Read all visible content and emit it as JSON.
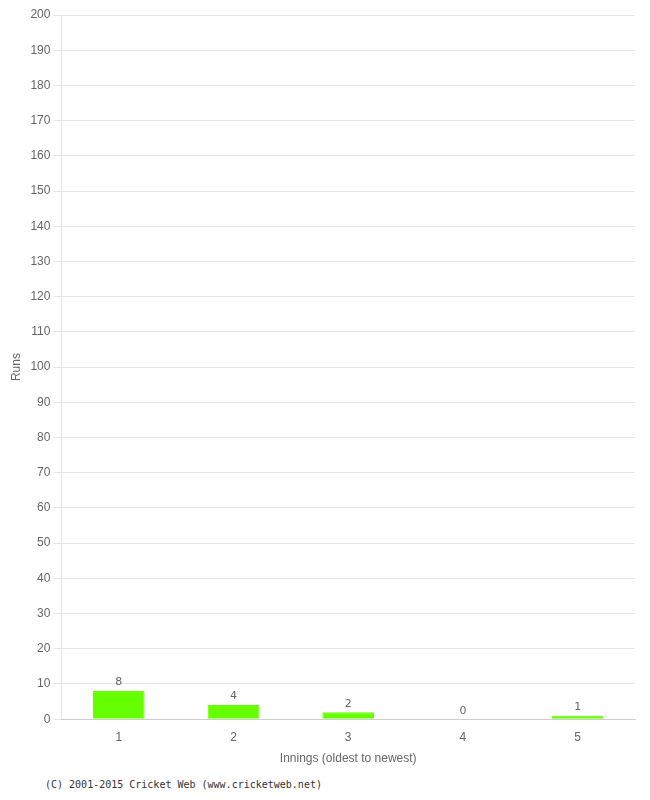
{
  "chart_data": {
    "type": "bar",
    "categories": [
      "1",
      "2",
      "3",
      "4",
      "5"
    ],
    "values": [
      8,
      4,
      2,
      0,
      1
    ],
    "color": "#66ff00",
    "xlabel": "Innings (oldest to newest)",
    "ylabel": "Runs",
    "ylim": [
      0,
      200
    ],
    "yticks": [
      0,
      10,
      20,
      30,
      40,
      50,
      60,
      70,
      80,
      90,
      100,
      110,
      120,
      130,
      140,
      150,
      160,
      170,
      180,
      190,
      200
    ],
    "grid": "y",
    "data_labels": true,
    "footer": "(C) 2001-2015 Cricket Web (www.cricketweb.net)"
  }
}
